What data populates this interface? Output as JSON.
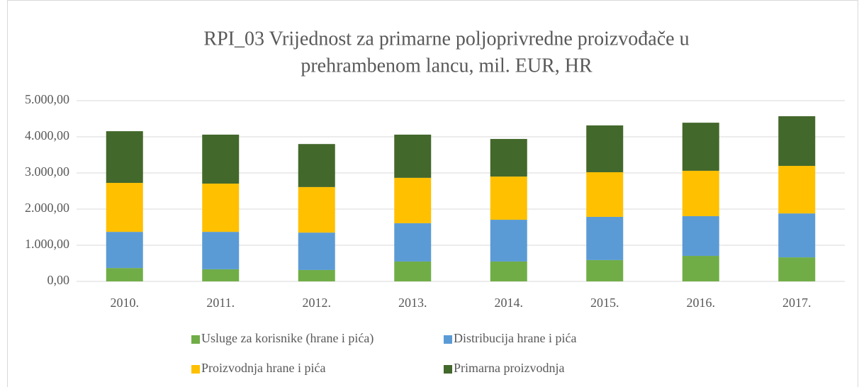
{
  "chart_data": {
    "type": "stacked-bar",
    "title": [
      "RPI_03 Vrijednost za primarne poljoprivredne proizvođače u",
      "prehrambenom lancu, mil. EUR, HR"
    ],
    "categories": [
      "2010.",
      "2011.",
      "2012.",
      "2013.",
      "2014.",
      "2015.",
      "2016.",
      "2017."
    ],
    "series": [
      {
        "name": "Usluge za korisnike (hrane i pića)",
        "color": "#70ad47",
        "values": [
          370,
          335,
          315,
          550,
          550,
          590,
          705,
          665
        ]
      },
      {
        "name": "Distribucija hrane i pića",
        "color": "#5b9bd5",
        "values": [
          1000,
          1035,
          1035,
          1060,
          1155,
          1195,
          1100,
          1215
        ]
      },
      {
        "name": "Proizvodnja hrane i pića",
        "color": "#ffc000",
        "values": [
          1355,
          1335,
          1260,
          1255,
          1195,
          1235,
          1255,
          1315
        ]
      },
      {
        "name": "Primarna proizvodnja",
        "color": "#43682b",
        "values": [
          1430,
          1355,
          1190,
          1195,
          1040,
          1295,
          1330,
          1375
        ]
      }
    ],
    "ylim": [
      0,
      5000
    ],
    "yticks": [
      {
        "value": 0,
        "label": "0,00"
      },
      {
        "value": 1000,
        "label": "1.000,00"
      },
      {
        "value": 2000,
        "label": "2.000,00"
      },
      {
        "value": 3000,
        "label": "3.000,00"
      },
      {
        "value": 4000,
        "label": "4.000,00"
      },
      {
        "value": 5000,
        "label": "5.000,00"
      }
    ],
    "grid": true,
    "legend": "bottom"
  }
}
